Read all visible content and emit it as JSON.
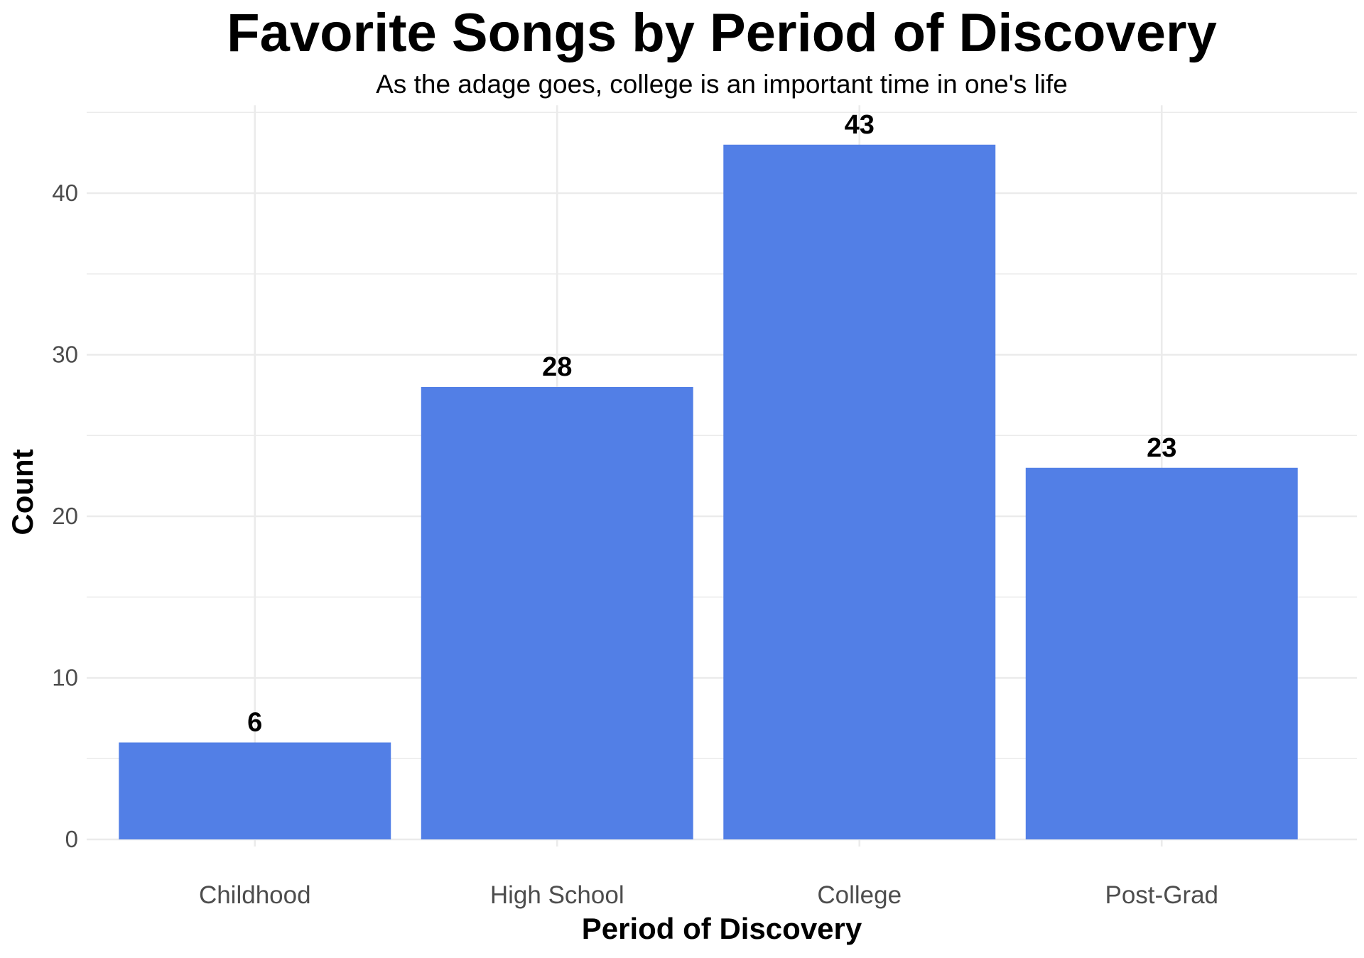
{
  "chart_data": {
    "type": "bar",
    "title": "Favorite Songs by Period of Discovery",
    "subtitle": "As the adage goes, college is an important time in one's life",
    "xlabel": "Period of Discovery",
    "ylabel": "Count",
    "categories": [
      "Childhood",
      "High School",
      "College",
      "Post-Grad"
    ],
    "values": [
      6,
      28,
      43,
      23
    ],
    "data_labels": [
      "6",
      "28",
      "43",
      "23"
    ],
    "ylim": [
      0,
      45
    ],
    "yticks": [
      0,
      10,
      20,
      30,
      40
    ],
    "ytick_labels": [
      "0",
      "10",
      "20",
      "30",
      "40"
    ],
    "grid": true,
    "bar_color": "#527FE6",
    "grid_color": "#EBEBEB"
  }
}
